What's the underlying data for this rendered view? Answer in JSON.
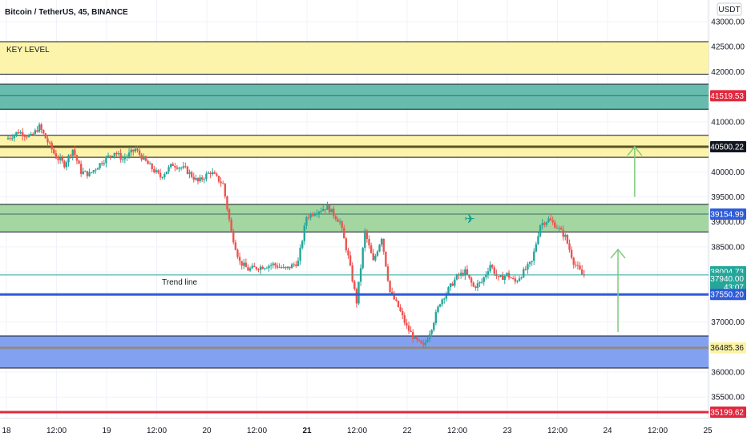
{
  "header": {
    "title": "Bitcoin / TetherUS, 45, BINANCE",
    "currency": "USDT"
  },
  "colors": {
    "up": "#26a69a",
    "down": "#ef5350",
    "yellow_zone": "#fdf3a6",
    "teal_zone": "#5fb8a9",
    "green_zone": "#9ed49c",
    "blue_zone": "#7b9cf0",
    "trend_line": "#2f5bd8",
    "red_line": "#e0293f",
    "arrow": "#7fc97f",
    "last_price": "#26a69a"
  },
  "chart_data": {
    "type": "candlestick",
    "ylim": [
      35000,
      43200
    ],
    "y_ticks": [
      35500,
      36000,
      36500,
      37000,
      37500,
      38000,
      38500,
      39000,
      39500,
      40000,
      40500,
      41000,
      41500,
      42000,
      42500,
      43000
    ],
    "y_tick_labels": [
      "35500.00",
      "36000.00",
      "36500.00",
      "37000.00",
      "37500.00",
      "38000.00",
      "38500.00",
      "39000.00",
      "39500.00",
      "40000.00",
      "40500.00",
      "41000.00",
      "41500.00",
      "42000.00",
      "42500.00",
      "43000.00"
    ],
    "x_labels": [
      {
        "t": 0,
        "label": "18"
      },
      {
        "t": 12,
        "label": "12:00"
      },
      {
        "t": 24,
        "label": "19"
      },
      {
        "t": 36,
        "label": "12:00"
      },
      {
        "t": 48,
        "label": "20"
      },
      {
        "t": 60,
        "label": "12:00"
      },
      {
        "t": 72,
        "label": "21"
      },
      {
        "t": 84,
        "label": "12:00"
      },
      {
        "t": 96,
        "label": "22"
      },
      {
        "t": 108,
        "label": "12:00"
      },
      {
        "t": 120,
        "label": "23"
      },
      {
        "t": 132,
        "label": "12:00"
      },
      {
        "t": 144,
        "label": "24"
      },
      {
        "t": 156,
        "label": "12:00"
      },
      {
        "t": 168,
        "label": "25"
      }
    ],
    "x_range": [
      0,
      168
    ],
    "zones": [
      {
        "name": "key-level-zone",
        "label": "KEY LEVEL",
        "from": 41950,
        "to": 42600,
        "color": "#fdf3a6",
        "mid": null
      },
      {
        "name": "resistance-teal-zone",
        "label": "",
        "from": 41250,
        "to": 41750,
        "color": "#5fb8a9",
        "mid": 41519.53
      },
      {
        "name": "resistance-yellow-zone",
        "label": "",
        "from": 40290,
        "to": 40730,
        "color": "#fdf3a6",
        "mid": 40500.22
      },
      {
        "name": "support-green-zone",
        "label": "",
        "from": 38800,
        "to": 39350,
        "color": "#9ed49c",
        "mid": 39154.99
      },
      {
        "name": "support-blue-zone",
        "label": "",
        "from": 36080,
        "to": 36720,
        "color": "#7b9cf0",
        "mid": 36485.36
      }
    ],
    "lines": [
      {
        "name": "trend-line",
        "label": "Trend line",
        "price": 37550.2,
        "color": "#2f5bd8",
        "width": 3
      },
      {
        "name": "red-level-line",
        "label": "",
        "price": 35199.62,
        "color": "#e0293f",
        "width": 3
      },
      {
        "name": "thin-level-line",
        "label": "",
        "price": 37940,
        "color": "#26a69a",
        "width": 1
      }
    ],
    "price_badges": [
      {
        "value": "41519.53",
        "price": 41519.53,
        "bg": "#e0293f",
        "fg": "#ffffff"
      },
      {
        "value": "40500.22",
        "price": 40500.22,
        "bg": "#131722",
        "fg": "#ffffff"
      },
      {
        "value": "39154.99",
        "price": 39154.99,
        "bg": "#2f5bd8",
        "fg": "#ffffff"
      },
      {
        "value": "38004.73",
        "price": 38004.73,
        "bg": "#26a69a",
        "fg": "#ffffff"
      },
      {
        "value": "37940.00",
        "price": 37870,
        "bg": "#26a69a",
        "fg": "#ffffff"
      },
      {
        "value": "43:07",
        "price": 37700,
        "bg": "#26a69a",
        "fg": "#ffffff"
      },
      {
        "value": "37550.20",
        "price": 37550.2,
        "bg": "#2f5bd8",
        "fg": "#ffffff"
      },
      {
        "value": "36485.36",
        "price": 36485.36,
        "bg": "#fdf3a6",
        "fg": "#131722"
      },
      {
        "value": "35199.62",
        "price": 35199.62,
        "bg": "#e0293f",
        "fg": "#ffffff"
      }
    ],
    "arrows": [
      {
        "name": "up-arrow-1",
        "t": 150.5,
        "from": 39500,
        "to": 40500
      },
      {
        "name": "up-arrow-2",
        "t": 146.5,
        "from": 36800,
        "to": 38450
      }
    ],
    "markers": [
      {
        "name": "airplane-icon",
        "t": 111,
        "price": 39100,
        "glyph": "✈"
      }
    ],
    "candle_keyframes": [
      [
        0,
        40650
      ],
      [
        3,
        40800
      ],
      [
        6,
        40700
      ],
      [
        8,
        40900
      ],
      [
        10,
        40600
      ],
      [
        12,
        40300
      ],
      [
        14,
        40150
      ],
      [
        16,
        40450
      ],
      [
        18,
        40000
      ],
      [
        20,
        39950
      ],
      [
        23,
        40200
      ],
      [
        26,
        40400
      ],
      [
        28,
        40250
      ],
      [
        31,
        40450
      ],
      [
        34,
        40150
      ],
      [
        37,
        39900
      ],
      [
        40,
        40150
      ],
      [
        43,
        40050
      ],
      [
        46,
        39800
      ],
      [
        49,
        40000
      ],
      [
        52,
        39750
      ],
      [
        54,
        38800
      ],
      [
        56,
        38200
      ],
      [
        58,
        38050
      ],
      [
        61,
        38100
      ],
      [
        64,
        38150
      ],
      [
        67,
        38050
      ],
      [
        70,
        38200
      ],
      [
        72,
        39100
      ],
      [
        74,
        39200
      ],
      [
        77,
        39300
      ],
      [
        80,
        39000
      ],
      [
        82,
        38300
      ],
      [
        84,
        37400
      ],
      [
        86,
        38800
      ],
      [
        88,
        38200
      ],
      [
        90,
        38700
      ],
      [
        92,
        37600
      ],
      [
        94,
        37300
      ],
      [
        96,
        36900
      ],
      [
        98,
        36650
      ],
      [
        100,
        36500
      ],
      [
        102,
        36900
      ],
      [
        104,
        37400
      ],
      [
        106,
        37650
      ],
      [
        108,
        37900
      ],
      [
        110,
        38000
      ],
      [
        112,
        37700
      ],
      [
        114,
        37800
      ],
      [
        116,
        38150
      ],
      [
        118,
        37850
      ],
      [
        120,
        37950
      ],
      [
        122,
        37800
      ],
      [
        124,
        38000
      ],
      [
        126,
        38200
      ],
      [
        128,
        38950
      ],
      [
        130,
        39050
      ],
      [
        132,
        38900
      ],
      [
        134,
        38700
      ],
      [
        136,
        38200
      ],
      [
        138,
        37950
      ]
    ]
  }
}
